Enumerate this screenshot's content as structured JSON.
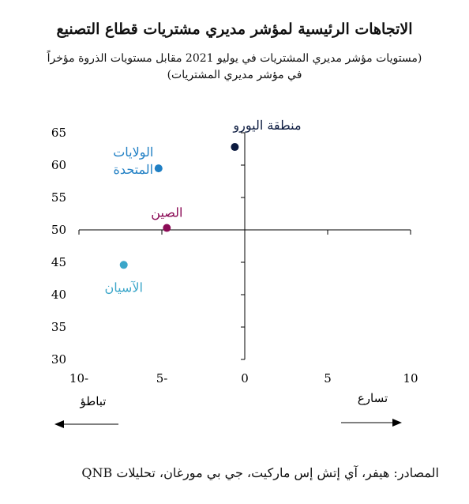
{
  "title": "الاتجاهات الرئيسية لمؤشر مديري مشتريات قطاع التصنيع",
  "subtitle_line1": "(مستويات مؤشر مديري المشتريات في يوليو 2021 مقابل مستويات الذروة مؤخراً",
  "subtitle_line2": "في مؤشر مديري المشتريات)",
  "source": "المصادر: هيفر، آي إتش إس ماركيت، جي بي مورغان، تحليلات QNB",
  "arrows": {
    "left_label": "تباطؤ",
    "right_label": "تسارع"
  },
  "colors": {
    "axis": "#000000"
  },
  "chart_data": {
    "type": "scatter",
    "xlim": [
      -10,
      10
    ],
    "ylim": [
      30,
      65
    ],
    "x_ticks": [
      -10,
      -5,
      0,
      5,
      10
    ],
    "x_tick_labels": [
      "10-",
      "5-",
      "0",
      "5",
      "10"
    ],
    "y_ticks": [
      30,
      35,
      40,
      45,
      50,
      55,
      60,
      65
    ],
    "grid": false,
    "points": [
      {
        "label_lines": [
          "منطقة اليورو"
        ],
        "x": -0.6,
        "y": 62.8,
        "color": "#0b1a3f"
      },
      {
        "label_lines": [
          "الولايات",
          "المتحدة"
        ],
        "x": -5.2,
        "y": 59.5,
        "color": "#1f7fc4"
      },
      {
        "label_lines": [
          "الصين"
        ],
        "x": -4.7,
        "y": 50.3,
        "color": "#8b0b56"
      },
      {
        "label_lines": [
          "الآسيان"
        ],
        "x": -7.3,
        "y": 44.6,
        "color": "#3ba6c9"
      }
    ]
  }
}
